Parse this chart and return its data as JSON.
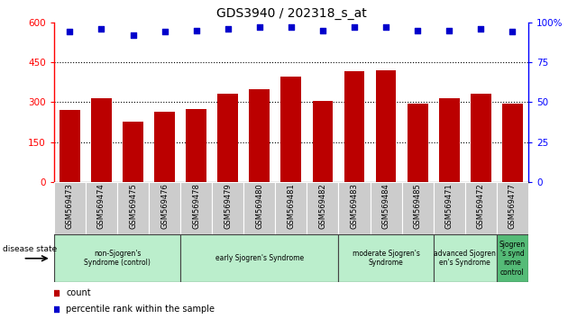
{
  "title": "GDS3940 / 202318_s_at",
  "samples": [
    "GSM569473",
    "GSM569474",
    "GSM569475",
    "GSM569476",
    "GSM569478",
    "GSM569479",
    "GSM569480",
    "GSM569481",
    "GSM569482",
    "GSM569483",
    "GSM569484",
    "GSM569485",
    "GSM569471",
    "GSM569472",
    "GSM569477"
  ],
  "counts": [
    270,
    315,
    225,
    265,
    275,
    330,
    350,
    395,
    305,
    415,
    420,
    295,
    315,
    330,
    295
  ],
  "percentiles": [
    94,
    96,
    92,
    94,
    95,
    96,
    97,
    97,
    95,
    97,
    97,
    95,
    95,
    96,
    94
  ],
  "bar_color": "#bb0000",
  "dot_color": "#0000cc",
  "ylim_left": [
    0,
    600
  ],
  "ylim_right": [
    0,
    100
  ],
  "yticks_left": [
    0,
    150,
    300,
    450,
    600
  ],
  "yticks_right": [
    0,
    25,
    50,
    75,
    100
  ],
  "groups": [
    {
      "label": "non-Sjogren's\nSyndrome (control)",
      "start": 0,
      "end": 3,
      "color": "#bbeebb"
    },
    {
      "label": "early Sjogren's Syndrome",
      "start": 4,
      "end": 8,
      "color": "#bbeecc"
    },
    {
      "label": "moderate Sjogren's\nSyndrome",
      "start": 9,
      "end": 11,
      "color": "#bbeecc"
    },
    {
      "label": "advanced Sjogren's\nen's Syndrome",
      "start": 12,
      "end": 13,
      "color": "#bbeecc"
    },
    {
      "label": "Sjogren\n's synd\nrome\ncontrol",
      "start": 14,
      "end": 14,
      "color": "#66cc88"
    }
  ],
  "disease_state_label": "disease state",
  "legend_count_label": "count",
  "legend_percentile_label": "percentile rank within the sample",
  "xtick_bg": "#cccccc",
  "group_border_color": "#444444"
}
